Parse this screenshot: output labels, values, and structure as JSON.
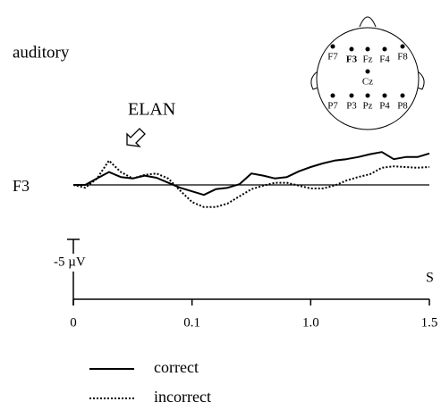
{
  "chart_data": {
    "type": "line",
    "title": "auditory",
    "annotation": "ELAN",
    "y_label": "F3",
    "scale_label": "-5 µV",
    "x_unit": "S",
    "categories": [
      "0",
      null,
      null,
      null,
      null,
      null,
      null,
      null,
      null,
      null,
      "0.1",
      null,
      null,
      null,
      null,
      null,
      null,
      null,
      null,
      null,
      "1.0",
      null,
      null,
      null,
      null,
      null,
      null,
      null,
      null,
      null,
      "1.5"
    ],
    "ylim": [
      -5,
      5
    ],
    "y_inverted": true,
    "series": [
      {
        "name": "correct",
        "color": "#000000",
        "style": "solid",
        "values": [
          0,
          0,
          -0.9,
          -1.8,
          -1.1,
          -0.9,
          -1.3,
          -1,
          -0.3,
          0.4,
          0.9,
          1.4,
          0.6,
          0.4,
          -0.1,
          -1.6,
          -1.3,
          -0.9,
          -1.1,
          -1.9,
          -2.5,
          -3,
          -3.4,
          -3.6,
          -3.9,
          -4.3,
          -4.6,
          -3.6,
          -3.9,
          -3.9,
          -4.4
        ]
      },
      {
        "name": "incorrect",
        "color": "#000000",
        "style": "dotted",
        "values": [
          0,
          0.4,
          -0.9,
          -3.4,
          -1.8,
          -0.9,
          -1.4,
          -1.6,
          -0.9,
          0.8,
          2.4,
          3.1,
          3.1,
          2.6,
          1.6,
          0.6,
          0.1,
          -0.3,
          -0.3,
          0.1,
          0.5,
          0.5,
          0.1,
          -0.6,
          -1.1,
          -1.5,
          -2.4,
          -2.6,
          -2.5,
          -2.4,
          -2.5
        ]
      }
    ]
  },
  "montage": {
    "electrodes": [
      {
        "label": "F7",
        "bold": false
      },
      {
        "label": "F3",
        "bold": true
      },
      {
        "label": "Fz",
        "bold": false
      },
      {
        "label": "F4",
        "bold": false
      },
      {
        "label": "F8",
        "bold": false
      },
      {
        "label": "Cz",
        "bold": false
      },
      {
        "label": "P7",
        "bold": false
      },
      {
        "label": "P3",
        "bold": false
      },
      {
        "label": "Pz",
        "bold": false
      },
      {
        "label": "P4",
        "bold": false
      },
      {
        "label": "P8",
        "bold": false
      }
    ]
  }
}
